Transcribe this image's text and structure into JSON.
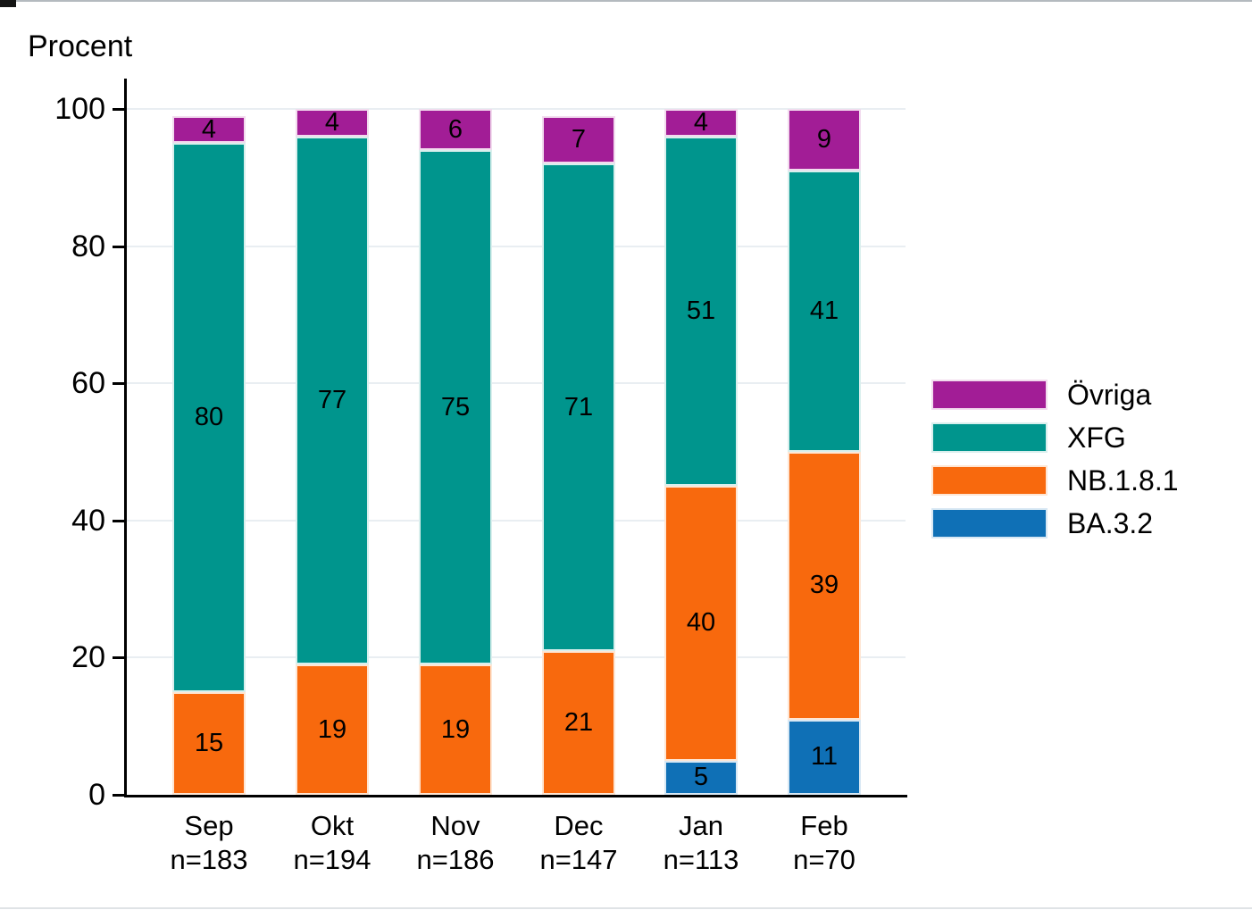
{
  "y_axis_title": "Procent",
  "chart_data": {
    "type": "bar",
    "stacked": true,
    "title": "Procent",
    "ylabel": "Procent",
    "xlabel": "",
    "ylim": [
      0,
      100
    ],
    "yticks": [
      0,
      20,
      40,
      60,
      80,
      100
    ],
    "grid": "horizontal-light",
    "legend_position": "right",
    "categories": [
      "Sep",
      "Okt",
      "Nov",
      "Dec",
      "Jan",
      "Feb"
    ],
    "category_sublabels": [
      "n=183",
      "n=194",
      "n=186",
      "n=147",
      "n=113",
      "n=70"
    ],
    "series": [
      {
        "name": "BA.3.2",
        "color": "#0F70B6",
        "border_color": "#D8E8F4",
        "values": [
          0,
          0,
          0,
          0,
          5,
          11
        ]
      },
      {
        "name": "NB.1.8.1",
        "color": "#F8690D",
        "border_color": "#FEE6D4",
        "values": [
          15,
          19,
          19,
          21,
          40,
          39
        ]
      },
      {
        "name": "XFG",
        "color": "#00958D",
        "border_color": "#D9EFED",
        "values": [
          80,
          77,
          75,
          71,
          51,
          41
        ]
      },
      {
        "name": "Övriga",
        "color": "#A21D96",
        "border_color": "#F2DBEE",
        "values": [
          4,
          4,
          6,
          7,
          4,
          9
        ]
      }
    ],
    "legend_order": [
      "Övriga",
      "XFG",
      "NB.1.8.1",
      "BA.3.2"
    ],
    "axis_color": "#000000",
    "gridline_color": "#E9EEF2",
    "background_color": "#FFFFFF"
  }
}
